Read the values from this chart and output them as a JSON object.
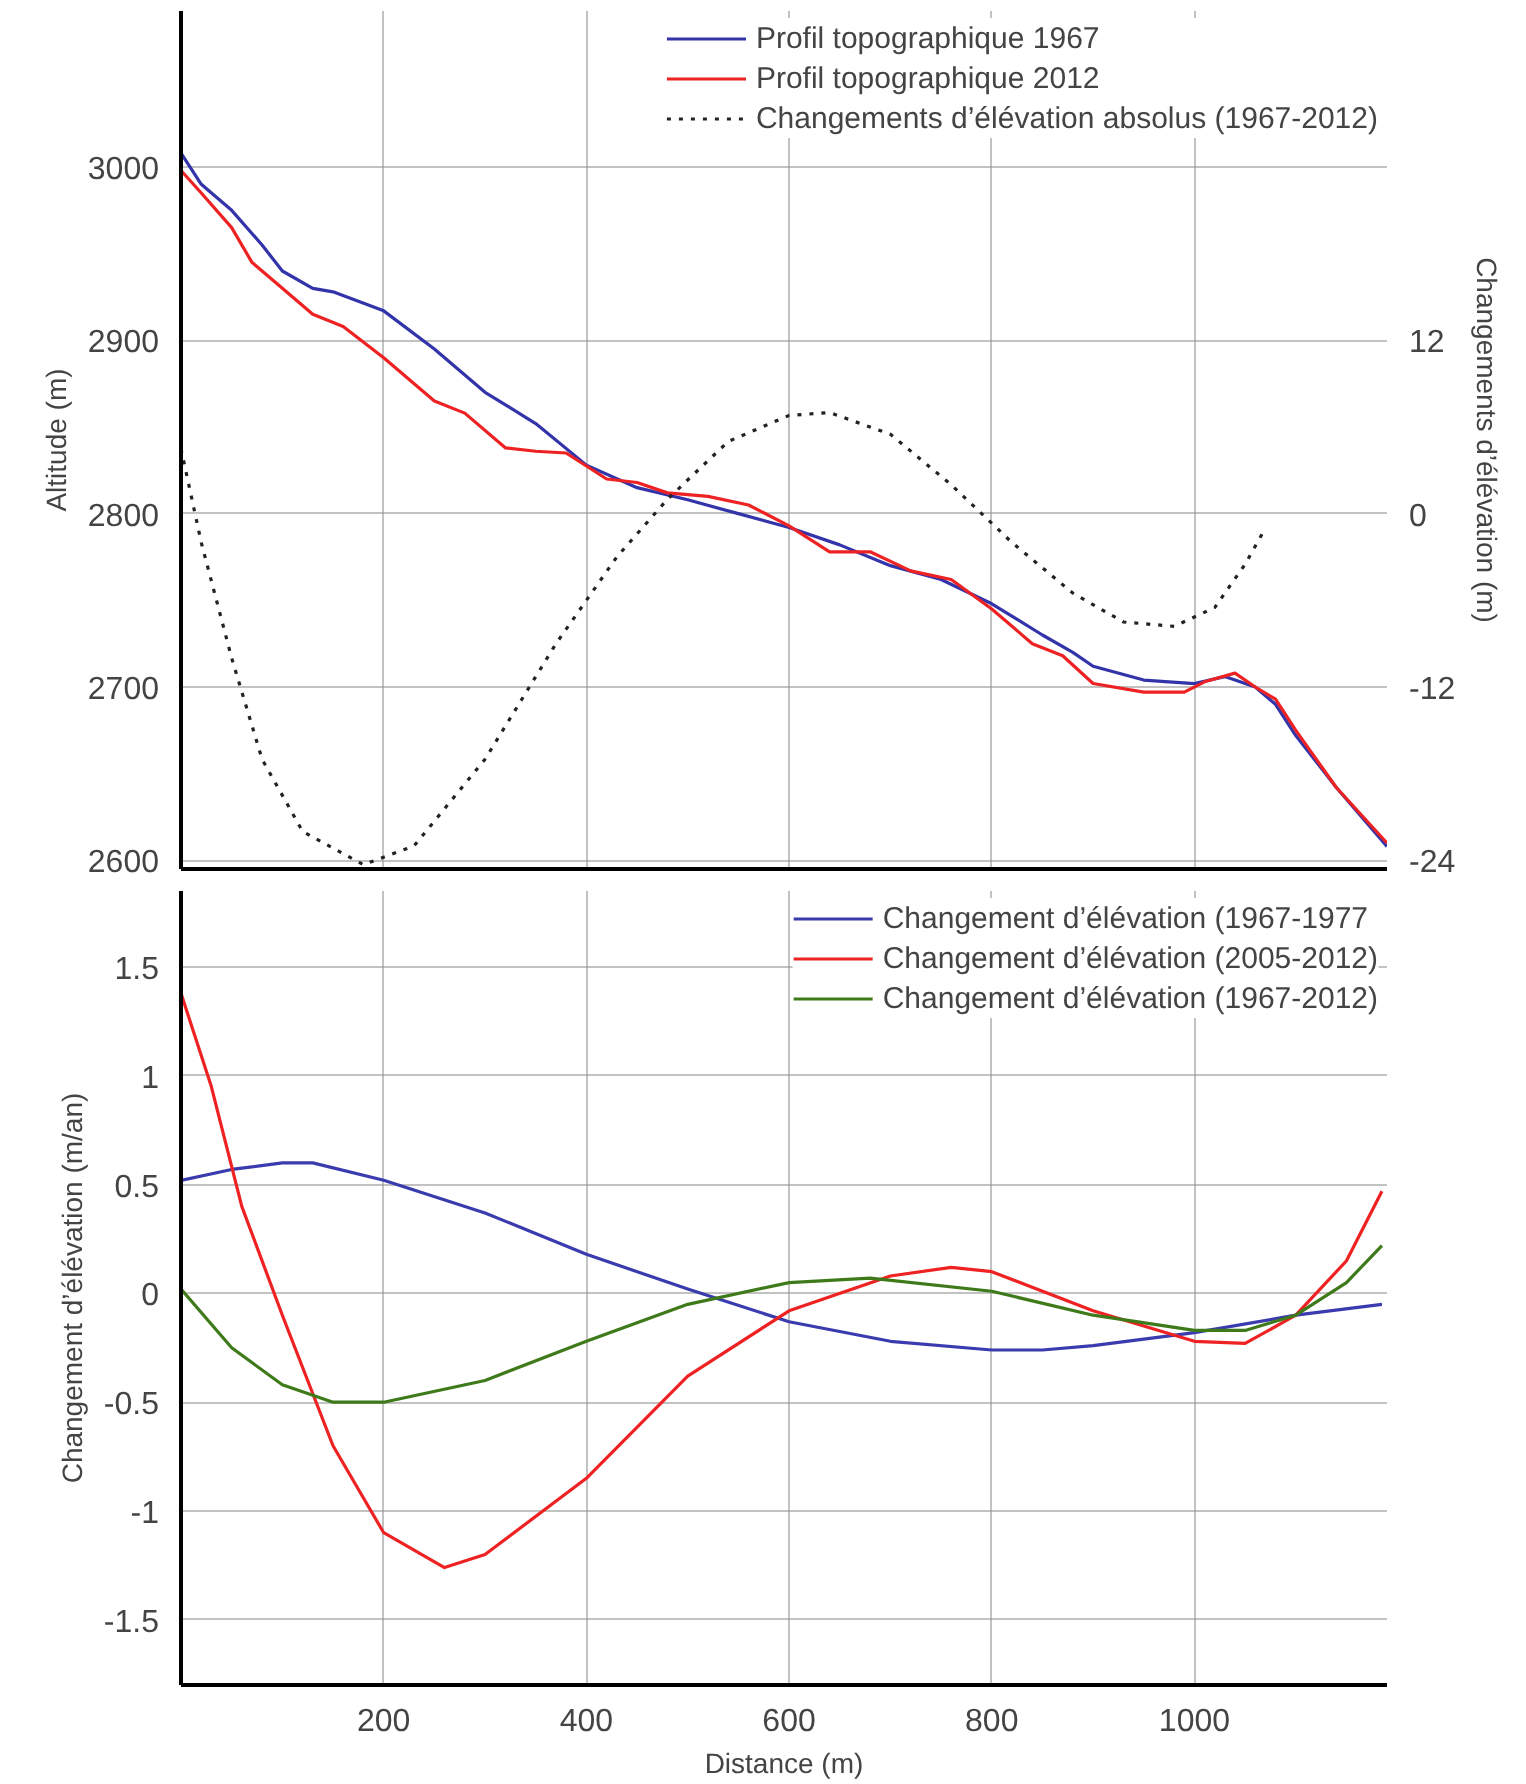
{
  "chart_data": [
    {
      "type": "line",
      "ylabel": "Altitude (m)",
      "y2label": "Changements d’élévation (m)",
      "xlim": [
        0,
        1190
      ],
      "xticks": [
        200,
        400,
        600,
        800,
        1000
      ],
      "ylim": [
        2595,
        3090
      ],
      "yticks": [
        2600,
        2700,
        2800,
        2900,
        3000
      ],
      "y2lim": [
        -24.6,
        34.8
      ],
      "y2ticks": [
        -24,
        -12,
        0,
        12
      ],
      "tick_labels": "y",
      "grid": true,
      "legend": "top right",
      "line_style": "solid",
      "series": [
        {
          "name": "Profil topographique 1967",
          "color": "#3333aa",
          "x": [
            0,
            20,
            50,
            80,
            100,
            130,
            150,
            200,
            250,
            300,
            350,
            400,
            450,
            500,
            550,
            600,
            650,
            700,
            750,
            800,
            850,
            880,
            900,
            950,
            1000,
            1030,
            1060,
            1080,
            1100,
            1140,
            1190
          ],
          "values": [
            3008,
            2990,
            2975,
            2955,
            2940,
            2930,
            2928,
            2917,
            2895,
            2870,
            2852,
            2828,
            2815,
            2808,
            2800,
            2792,
            2782,
            2770,
            2762,
            2748,
            2730,
            2720,
            2712,
            2704,
            2702,
            2706,
            2700,
            2690,
            2672,
            2642,
            2608
          ]
        },
        {
          "name": "Profil topographique 2012",
          "color": "#ee2222",
          "x": [
            0,
            20,
            50,
            70,
            100,
            130,
            160,
            200,
            250,
            280,
            320,
            350,
            380,
            420,
            450,
            480,
            520,
            560,
            600,
            640,
            680,
            720,
            760,
            800,
            840,
            870,
            900,
            950,
            990,
            1010,
            1040,
            1060,
            1080,
            1100,
            1140,
            1190
          ],
          "values": [
            2998,
            2985,
            2965,
            2945,
            2930,
            2915,
            2908,
            2890,
            2865,
            2858,
            2838,
            2836,
            2835,
            2820,
            2818,
            2812,
            2810,
            2805,
            2793,
            2778,
            2778,
            2767,
            2762,
            2745,
            2725,
            2718,
            2702,
            2697,
            2697,
            2703,
            2708,
            2700,
            2693,
            2675,
            2642,
            2610
          ]
        },
        {
          "name": "Changements d’élévation absolus (1967-2012)",
          "color": "#222222",
          "axis": "y2",
          "line_style": "dotted",
          "x": [
            0,
            20,
            50,
            80,
            120,
            180,
            230,
            300,
            370,
            430,
            480,
            540,
            600,
            640,
            700,
            760,
            820,
            880,
            930,
            980,
            1020,
            1050,
            1070
          ],
          "values": [
            4.5,
            -2,
            -10,
            -17,
            -22,
            -24.3,
            -23,
            -17,
            -9,
            -3,
            1,
            5,
            6.8,
            7,
            5.5,
            2,
            -2,
            -5.5,
            -7.5,
            -7.8,
            -6.5,
            -3.5,
            -1
          ]
        }
      ]
    },
    {
      "type": "line",
      "xlabel": "Distance (m)",
      "ylabel": "Changement d’élévation (m/an)",
      "xlim": [
        0,
        1190
      ],
      "xticks": [
        200,
        400,
        600,
        800,
        1000
      ],
      "ylim": [
        -1.8,
        1.85
      ],
      "yticks": [
        {
          "value": -1.5,
          "label": "-1.5"
        },
        {
          "value": -1,
          "label": "-1"
        },
        {
          "value": -0.5,
          "label": "-0.5"
        },
        0,
        {
          "value": 0.5,
          "label": "0.5"
        },
        1,
        {
          "value": 1.5,
          "label": "1.5"
        }
      ],
      "grid": true,
      "legend": "top right",
      "line_style": "solid",
      "series": [
        {
          "name": "Changement d’élévation (1967-1977",
          "color": "#3b3bb0",
          "x": [
            0,
            50,
            100,
            130,
            200,
            300,
            400,
            500,
            600,
            700,
            800,
            850,
            900,
            1000,
            1100,
            1185
          ],
          "values": [
            0.52,
            0.57,
            0.6,
            0.6,
            0.52,
            0.37,
            0.18,
            0.02,
            -0.13,
            -0.22,
            -0.26,
            -0.26,
            -0.24,
            -0.18,
            -0.1,
            -0.05
          ]
        },
        {
          "name": "Changement d’élévation (2005-2012)",
          "color": "#ee2222",
          "x": [
            0,
            30,
            60,
            100,
            150,
            200,
            260,
            300,
            400,
            500,
            600,
            700,
            760,
            800,
            900,
            1000,
            1050,
            1100,
            1150,
            1185
          ],
          "values": [
            1.38,
            0.95,
            0.4,
            -0.1,
            -0.7,
            -1.1,
            -1.26,
            -1.2,
            -0.85,
            -0.38,
            -0.08,
            0.08,
            0.12,
            0.1,
            -0.08,
            -0.22,
            -0.23,
            -0.1,
            0.15,
            0.47
          ]
        },
        {
          "name": "Changement d’élévation (1967-2012)",
          "color": "#3f7a1a",
          "x": [
            0,
            50,
            100,
            150,
            200,
            300,
            400,
            500,
            600,
            680,
            800,
            900,
            1000,
            1050,
            1100,
            1150,
            1185
          ],
          "values": [
            0.02,
            -0.25,
            -0.42,
            -0.5,
            -0.5,
            -0.4,
            -0.22,
            -0.05,
            0.05,
            0.07,
            0.01,
            -0.1,
            -0.17,
            -0.17,
            -0.1,
            0.05,
            0.22
          ]
        }
      ]
    }
  ]
}
